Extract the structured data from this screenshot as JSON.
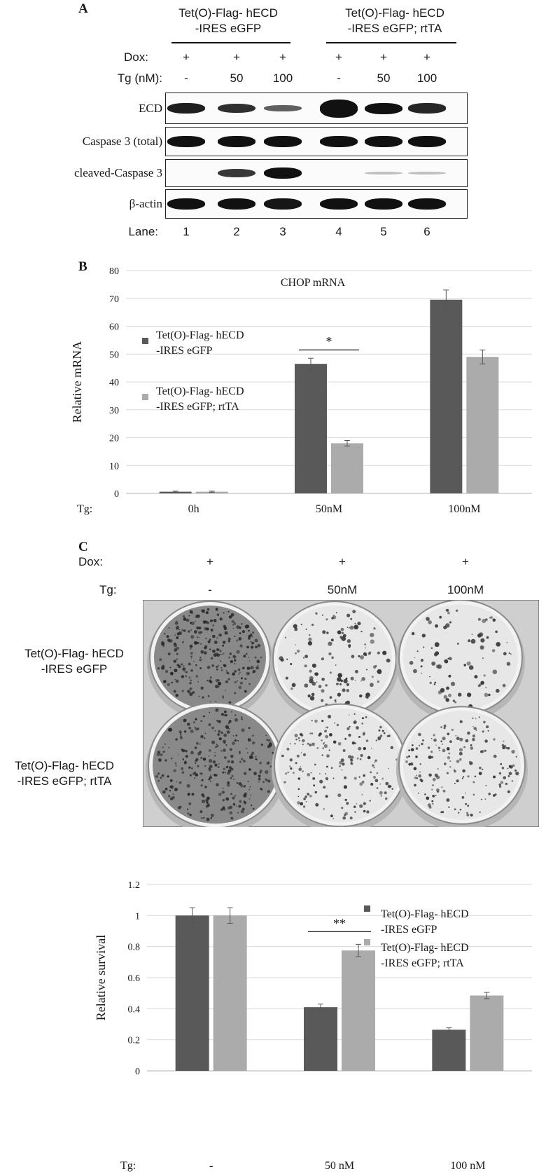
{
  "panel_a": {
    "letter": "A",
    "groups": [
      {
        "line1": "Tet(O)-Flag- hECD",
        "line2": "-IRES eGFP"
      },
      {
        "line1": "Tet(O)-Flag- hECD",
        "line2": "-IRES eGFP; rtTA"
      }
    ],
    "dox_label": "Dox:",
    "dox_values": [
      "+",
      "+",
      "+",
      "+",
      "+",
      "+"
    ],
    "tg_label": "Tg (nM):",
    "tg_values": [
      "-",
      "50",
      "100",
      "-",
      "50",
      "100"
    ],
    "blots": [
      {
        "label": "ECD",
        "intensity": [
          0.85,
          0.75,
          0.45,
          1.0,
          0.95,
          0.8
        ]
      },
      {
        "label": "Caspase 3 (total)",
        "intensity": [
          0.95,
          0.95,
          0.95,
          0.95,
          0.95,
          0.95
        ]
      },
      {
        "label": "cleaved-Caspase 3",
        "intensity": [
          0.0,
          0.7,
          0.95,
          0.0,
          0.15,
          0.15
        ]
      },
      {
        "label": "β-actin",
        "intensity": [
          0.95,
          0.95,
          0.9,
          0.95,
          0.95,
          0.95
        ]
      }
    ],
    "lane_label": "Lane:",
    "lanes": [
      "1",
      "2",
      "3",
      "4",
      "5",
      "6"
    ]
  },
  "panel_b": {
    "letter": "B",
    "chart_data": {
      "type": "bar",
      "title": "CHOP mRNA",
      "ylabel": "Relative mRNA",
      "xprefix": "Tg:",
      "categories": [
        "0h",
        "50nM",
        "100nM"
      ],
      "ylim": [
        0,
        80
      ],
      "yticks": [
        "0",
        "10",
        "20",
        "30",
        "40",
        "50",
        "60",
        "70",
        "80"
      ],
      "series": [
        {
          "name": "Tet(O)-Flag- hECD\n-IRES eGFP",
          "values": [
            0.6,
            46.5,
            69.5
          ],
          "errors": [
            0.2,
            2,
            3.5
          ],
          "color": "#595959"
        },
        {
          "name": "Tet(O)-Flag- hECD\n-IRES eGFP; rtTA",
          "values": [
            0.6,
            18,
            49
          ],
          "errors": [
            0.2,
            1,
            2.5
          ],
          "color": "#ababab"
        }
      ],
      "legend_position": "top-left",
      "significance": {
        "label": "*",
        "category": "50nM"
      }
    }
  },
  "panel_c": {
    "letter": "C",
    "dox_label": "Dox:",
    "dox_values": [
      "+",
      "+",
      "+"
    ],
    "tg_label": "Tg:",
    "tg_values": [
      "-",
      "50nM",
      "100nM"
    ],
    "rows": [
      {
        "line1": "Tet(O)-Flag- hECD",
        "line2": "-IRES eGFP",
        "density": [
          0.9,
          0.35,
          0.18
        ]
      },
      {
        "line1": "Tet(O)-Flag- hECD",
        "line2": "-IRES eGFP; rtTA",
        "density": [
          0.95,
          0.55,
          0.5
        ]
      }
    ],
    "chart_data": {
      "type": "bar",
      "ylabel": "Relative survival",
      "xprefix": "Tg:",
      "categories": [
        "-",
        "50 nM",
        "100 nM"
      ],
      "ylim": [
        0,
        1.2
      ],
      "yticks": [
        "0",
        "0.2",
        "0.4",
        "0.6",
        "0.8",
        "1",
        "1.2"
      ],
      "series": [
        {
          "name": "Tet(O)-Flag- hECD\n-IRES eGFP",
          "values": [
            1.0,
            0.41,
            0.265
          ],
          "errors": [
            0.05,
            0.02,
            0.012
          ],
          "color": "#595959"
        },
        {
          "name": "Tet(O)-Flag- hECD\n-IRES eGFP; rtTA",
          "values": [
            1.0,
            0.775,
            0.485
          ],
          "errors": [
            0.05,
            0.04,
            0.02
          ],
          "color": "#ababab"
        }
      ],
      "legend_position": "top-right",
      "significance": {
        "label": "**",
        "category": "50 nM"
      }
    }
  }
}
